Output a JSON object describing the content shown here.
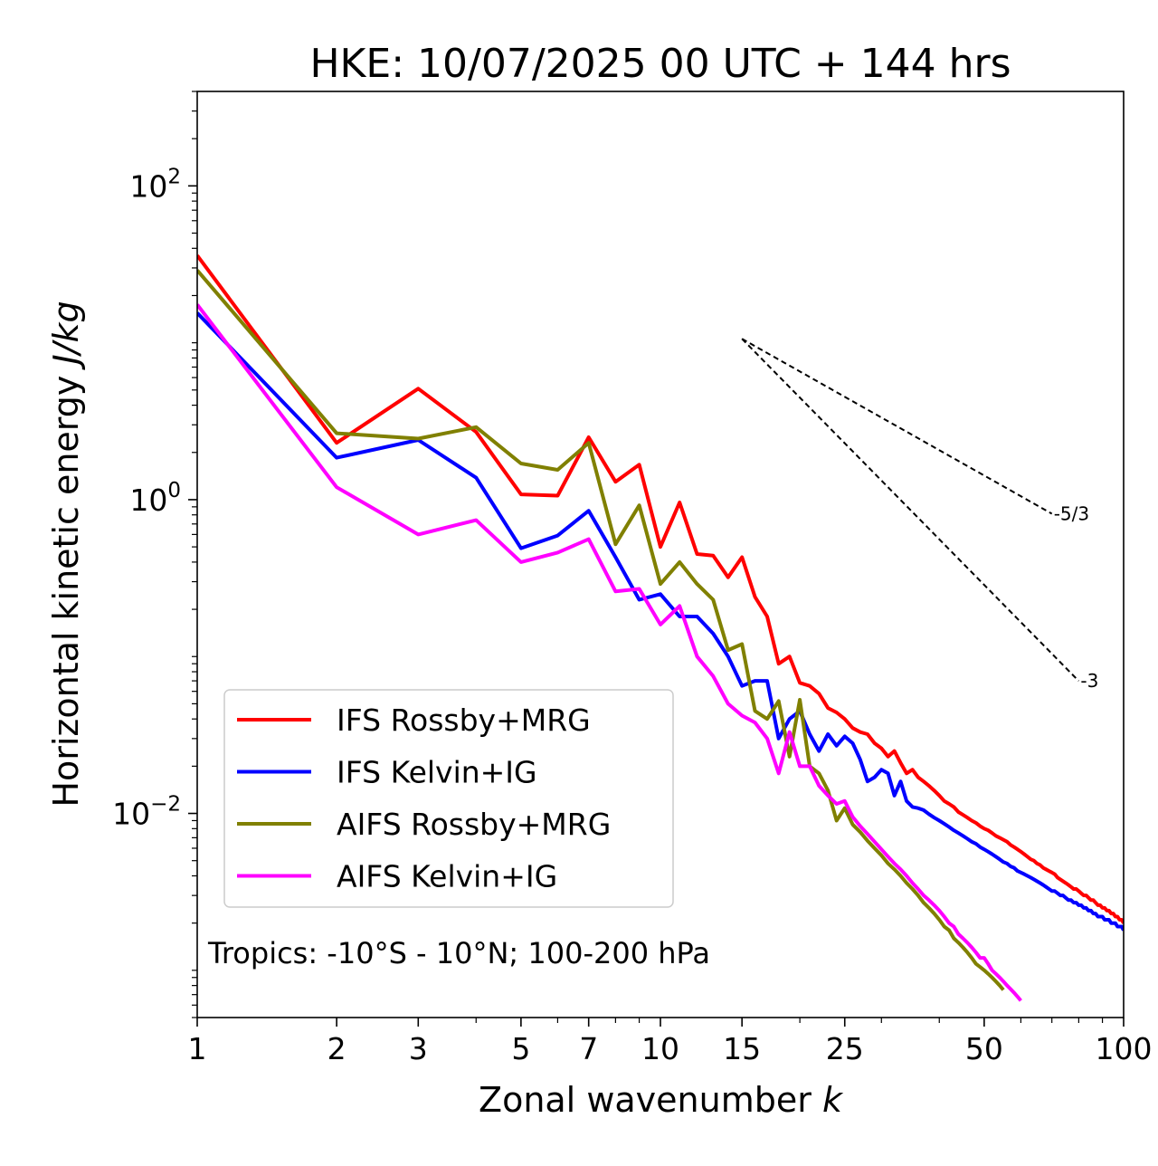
{
  "chart_data": {
    "type": "line",
    "title": "HKE: 10/07/2025 00 UTC + 144 hrs",
    "xlabel": "Zonal wavenumber",
    "xlabel_var": "k",
    "ylabel": "Horizontal kinetic energy",
    "ylabel_unit": "J/kg",
    "xscale": "log",
    "yscale": "log",
    "xlim": [
      1,
      100
    ],
    "ylim": [
      0.0005,
      400
    ],
    "x_ticks": [
      {
        "value": 1,
        "label": "1"
      },
      {
        "value": 2,
        "label": "2"
      },
      {
        "value": 3,
        "label": "3"
      },
      {
        "value": 5,
        "label": "5"
      },
      {
        "value": 7,
        "label": "7"
      },
      {
        "value": 10,
        "label": "10"
      },
      {
        "value": 15,
        "label": "15"
      },
      {
        "value": 25,
        "label": "25"
      },
      {
        "value": 50,
        "label": "50"
      },
      {
        "value": 100,
        "label": "100"
      }
    ],
    "y_ticks": [
      {
        "value": 100,
        "base": "10",
        "exp": "2"
      },
      {
        "value": 1,
        "base": "10",
        "exp": "0"
      },
      {
        "value": 0.01,
        "base": "10",
        "exp": "−2"
      }
    ],
    "grid": false,
    "legend_position": "lower-left",
    "annotation": "Tropics: -10°S - 10°N; 100-200 hPa",
    "reference_slopes": [
      {
        "label": "-5/3",
        "slope": -1.6667,
        "x0": 15,
        "y0": 10.6,
        "x1": 70
      },
      {
        "label": "-3",
        "slope": -3,
        "x0": 15,
        "y0": 10.6,
        "x1": 80
      }
    ],
    "series": [
      {
        "name": "IFS Rossby+MRG",
        "color": "#ff0000",
        "x": [
          1,
          2,
          3,
          4,
          5,
          6,
          7,
          8,
          9,
          10,
          11,
          12,
          13,
          14,
          15,
          16,
          17,
          18,
          19,
          20,
          21,
          22,
          23,
          24,
          25,
          26,
          27,
          28,
          29,
          30,
          31,
          32,
          33,
          34,
          35,
          36,
          37,
          38,
          39,
          40,
          41,
          42,
          43,
          44,
          45,
          46,
          47,
          48,
          49,
          50,
          51,
          52,
          53,
          54,
          55,
          56,
          57,
          58,
          59,
          60,
          61,
          62,
          63,
          64,
          65,
          66,
          67,
          68,
          69,
          70,
          71,
          72,
          73,
          74,
          75,
          76,
          77,
          78,
          79,
          80,
          81,
          82,
          83,
          84,
          85,
          86,
          87,
          88,
          89,
          90,
          91,
          92,
          93,
          94,
          95,
          96,
          97,
          98,
          99,
          100
        ],
        "y": [
          36,
          2.3,
          5.1,
          2.7,
          1.08,
          1.06,
          2.5,
          1.3,
          1.67,
          0.5,
          0.96,
          0.45,
          0.44,
          0.32,
          0.43,
          0.24,
          0.18,
          0.09,
          0.1,
          0.068,
          0.065,
          0.058,
          0.047,
          0.044,
          0.04,
          0.035,
          0.033,
          0.032,
          0.028,
          0.026,
          0.023,
          0.025,
          0.021,
          0.018,
          0.019,
          0.017,
          0.016,
          0.015,
          0.014,
          0.013,
          0.012,
          0.0115,
          0.011,
          0.0102,
          0.0098,
          0.0094,
          0.009,
          0.0087,
          0.0083,
          0.008,
          0.0078,
          0.0075,
          0.0072,
          0.007,
          0.0068,
          0.0066,
          0.0063,
          0.0061,
          0.0059,
          0.0057,
          0.0055,
          0.0053,
          0.0051,
          0.005,
          0.0048,
          0.0047,
          0.0045,
          0.0044,
          0.0043,
          0.0042,
          0.0041,
          0.0039,
          0.0038,
          0.0037,
          0.0036,
          0.0035,
          0.0034,
          0.0033,
          0.0033,
          0.0032,
          0.0031,
          0.003,
          0.003,
          0.0029,
          0.0028,
          0.0028,
          0.0027,
          0.0026,
          0.0026,
          0.0025,
          0.0025,
          0.0024,
          0.0024,
          0.0023,
          0.0023,
          0.0022,
          0.0022,
          0.0021,
          0.0021,
          0.002
        ]
      },
      {
        "name": "IFS Kelvin+IG",
        "color": "#0000ff",
        "x": [
          1,
          2,
          3,
          4,
          5,
          6,
          7,
          8,
          9,
          10,
          11,
          12,
          13,
          14,
          15,
          16,
          17,
          18,
          19,
          20,
          21,
          22,
          23,
          24,
          25,
          26,
          27,
          28,
          29,
          30,
          31,
          32,
          33,
          34,
          35,
          36,
          37,
          38,
          39,
          40,
          41,
          42,
          43,
          44,
          45,
          46,
          47,
          48,
          49,
          50,
          51,
          52,
          53,
          54,
          55,
          56,
          57,
          58,
          59,
          60,
          61,
          62,
          63,
          64,
          65,
          66,
          67,
          68,
          69,
          70,
          71,
          72,
          73,
          74,
          75,
          76,
          77,
          78,
          79,
          80,
          81,
          82,
          83,
          84,
          85,
          86,
          87,
          88,
          89,
          90,
          91,
          92,
          93,
          94,
          95,
          96,
          97,
          98,
          99,
          100
        ],
        "y": [
          15.5,
          1.85,
          2.4,
          1.38,
          0.49,
          0.59,
          0.85,
          0.43,
          0.23,
          0.25,
          0.18,
          0.18,
          0.14,
          0.1,
          0.065,
          0.07,
          0.07,
          0.03,
          0.04,
          0.045,
          0.032,
          0.025,
          0.032,
          0.027,
          0.031,
          0.028,
          0.022,
          0.016,
          0.017,
          0.019,
          0.018,
          0.013,
          0.016,
          0.012,
          0.011,
          0.0108,
          0.0105,
          0.0099,
          0.0094,
          0.009,
          0.0086,
          0.0082,
          0.0078,
          0.0075,
          0.0072,
          0.0069,
          0.0066,
          0.0064,
          0.0061,
          0.0059,
          0.0057,
          0.0055,
          0.0053,
          0.0051,
          0.0049,
          0.0048,
          0.0046,
          0.0045,
          0.0043,
          0.0042,
          0.0041,
          0.004,
          0.0039,
          0.0038,
          0.0037,
          0.0036,
          0.0035,
          0.0034,
          0.0033,
          0.0032,
          0.0032,
          0.0031,
          0.003,
          0.003,
          0.0029,
          0.0028,
          0.0028,
          0.0027,
          0.0027,
          0.0026,
          0.0026,
          0.0025,
          0.0025,
          0.0024,
          0.0024,
          0.0023,
          0.0023,
          0.0022,
          0.0022,
          0.0022,
          0.0021,
          0.0021,
          0.0021,
          0.002,
          0.002,
          0.002,
          0.0019,
          0.0019,
          0.0019,
          0.0018
        ]
      },
      {
        "name": "AIFS Rossby+MRG",
        "color": "#808000",
        "x": [
          1,
          2,
          3,
          4,
          5,
          6,
          7,
          8,
          9,
          10,
          11,
          12,
          13,
          14,
          15,
          16,
          17,
          18,
          19,
          20,
          21,
          22,
          23,
          24,
          25,
          26,
          27,
          28,
          29,
          30,
          31,
          32,
          33,
          34,
          35,
          36,
          37,
          38,
          39,
          40,
          41,
          42,
          43,
          44,
          45,
          46,
          47,
          48,
          49,
          50,
          51,
          52,
          53,
          54,
          55
        ],
        "y": [
          29,
          2.65,
          2.45,
          2.9,
          1.7,
          1.55,
          2.3,
          0.52,
          0.92,
          0.29,
          0.4,
          0.29,
          0.23,
          0.11,
          0.12,
          0.045,
          0.04,
          0.052,
          0.023,
          0.053,
          0.02,
          0.018,
          0.014,
          0.009,
          0.0108,
          0.0085,
          0.0076,
          0.0067,
          0.006,
          0.0054,
          0.0048,
          0.0044,
          0.004,
          0.0036,
          0.0033,
          0.003,
          0.0027,
          0.0025,
          0.0023,
          0.0021,
          0.0019,
          0.0018,
          0.0016,
          0.0015,
          0.0014,
          0.0013,
          0.0012,
          0.0011,
          0.00105,
          0.001,
          0.00095,
          0.0009,
          0.00085,
          0.0008,
          0.00075
        ]
      },
      {
        "name": "AIFS Kelvin+IG",
        "color": "#ff00ff",
        "x": [
          1,
          2,
          3,
          4,
          5,
          6,
          7,
          8,
          9,
          10,
          11,
          12,
          13,
          14,
          15,
          16,
          17,
          18,
          19,
          20,
          21,
          22,
          23,
          24,
          25,
          26,
          27,
          28,
          29,
          30,
          31,
          32,
          33,
          34,
          35,
          36,
          37,
          38,
          39,
          40,
          41,
          42,
          43,
          44,
          45,
          46,
          47,
          48,
          49,
          50,
          51,
          52,
          53,
          54,
          55,
          56,
          57,
          58,
          59,
          60
        ],
        "y": [
          17.5,
          1.2,
          0.6,
          0.74,
          0.4,
          0.46,
          0.56,
          0.26,
          0.27,
          0.16,
          0.21,
          0.1,
          0.075,
          0.05,
          0.042,
          0.038,
          0.03,
          0.018,
          0.033,
          0.02,
          0.02,
          0.015,
          0.013,
          0.0115,
          0.012,
          0.0095,
          0.0083,
          0.0074,
          0.0066,
          0.0059,
          0.0053,
          0.0048,
          0.0044,
          0.004,
          0.0036,
          0.0033,
          0.003,
          0.0028,
          0.0026,
          0.0024,
          0.0022,
          0.002,
          0.0019,
          0.0017,
          0.0016,
          0.0015,
          0.0014,
          0.0013,
          0.0012,
          0.0012,
          0.0011,
          0.001,
          0.00095,
          0.0009,
          0.00085,
          0.0008,
          0.00076,
          0.00072,
          0.00068,
          0.00064
        ]
      }
    ]
  }
}
